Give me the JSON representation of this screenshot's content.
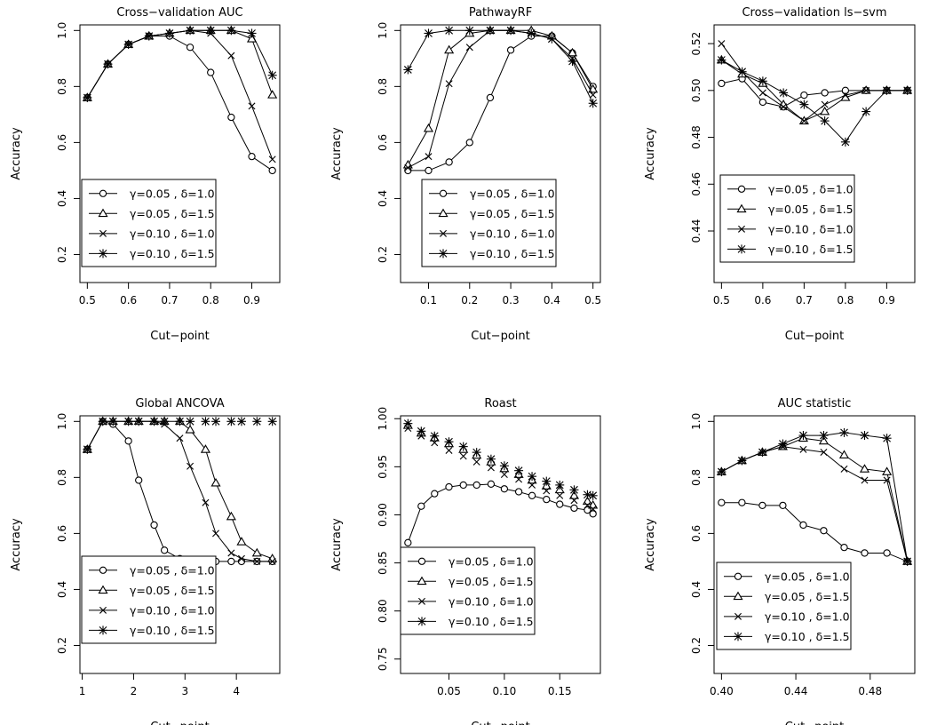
{
  "chart_data": [
    {
      "type": "line",
      "title": "Cross−validation AUC",
      "xlabel": "Cut−point",
      "ylabel": "Accuracy",
      "xlim": [
        0.5,
        0.95
      ],
      "ylim": [
        0.1,
        1.02
      ],
      "xticks": [
        0.5,
        0.6,
        0.7,
        0.8,
        0.9
      ],
      "xtick_labels": [
        "0.5",
        "0.6",
        "0.7",
        "0.8",
        "0.9"
      ],
      "yticks": [
        0.2,
        0.4,
        0.6,
        0.8,
        1.0
      ],
      "ytick_labels": [
        "0.2",
        "0.4",
        "0.6",
        "0.8",
        "1.0"
      ],
      "grid": false,
      "legend_position": "bottom-left",
      "x": [
        0.5,
        0.55,
        0.6,
        0.65,
        0.7,
        0.75,
        0.8,
        0.85,
        0.9,
        0.95
      ],
      "series": [
        {
          "name": "γ=0.05 , δ=1.0",
          "marker": "circle",
          "connected": true,
          "values": [
            0.76,
            0.88,
            0.95,
            0.98,
            0.98,
            0.94,
            0.85,
            0.69,
            0.55,
            0.5
          ]
        },
        {
          "name": "γ=0.05 , δ=1.5",
          "marker": "triangle",
          "connected": true,
          "values": [
            0.76,
            0.88,
            0.95,
            0.98,
            0.99,
            1.0,
            1.0,
            1.0,
            0.97,
            0.77
          ]
        },
        {
          "name": "γ=0.10 , δ=1.0",
          "marker": "x",
          "connected": true,
          "values": [
            0.76,
            0.88,
            0.95,
            0.98,
            0.99,
            1.0,
            0.99,
            0.91,
            0.73,
            0.54
          ]
        },
        {
          "name": "γ=0.10 , δ=1.5",
          "marker": "star",
          "connected": true,
          "values": [
            0.76,
            0.88,
            0.95,
            0.98,
            0.99,
            1.0,
            1.0,
            1.0,
            0.99,
            0.84
          ]
        }
      ]
    },
    {
      "type": "line",
      "title": "PathwayRF",
      "xlabel": "Cut−point",
      "ylabel": "Accuracy",
      "xlim": [
        0.05,
        0.5
      ],
      "ylim": [
        0.1,
        1.02
      ],
      "xticks": [
        0.1,
        0.2,
        0.3,
        0.4,
        0.5
      ],
      "xtick_labels": [
        "0.1",
        "0.2",
        "0.3",
        "0.4",
        "0.5"
      ],
      "yticks": [
        0.2,
        0.4,
        0.6,
        0.8,
        1.0
      ],
      "ytick_labels": [
        "0.2",
        "0.4",
        "0.6",
        "0.8",
        "1.0"
      ],
      "grid": false,
      "legend_position": "bottom-right",
      "x": [
        0.05,
        0.1,
        0.15,
        0.2,
        0.25,
        0.3,
        0.35,
        0.4,
        0.45,
        0.5
      ],
      "series": [
        {
          "name": "γ=0.05 , δ=1.0",
          "marker": "circle",
          "connected": true,
          "values": [
            0.5,
            0.5,
            0.53,
            0.6,
            0.76,
            0.93,
            0.98,
            0.98,
            0.92,
            0.8
          ]
        },
        {
          "name": "γ=0.05 , δ=1.5",
          "marker": "triangle",
          "connected": true,
          "values": [
            0.52,
            0.65,
            0.93,
            0.99,
            1.0,
            1.0,
            1.0,
            0.98,
            0.92,
            0.79
          ]
        },
        {
          "name": "γ=0.10 , δ=1.0",
          "marker": "x",
          "connected": true,
          "values": [
            0.51,
            0.55,
            0.81,
            0.94,
            1.0,
            1.0,
            0.99,
            0.97,
            0.9,
            0.77
          ]
        },
        {
          "name": "γ=0.10 , δ=1.5",
          "marker": "star",
          "connected": true,
          "values": [
            0.86,
            0.99,
            1.0,
            1.0,
            1.0,
            1.0,
            0.99,
            0.97,
            0.89,
            0.74
          ]
        }
      ]
    },
    {
      "type": "line",
      "title": "Cross−validation ls−svm",
      "xlabel": "Cut−point",
      "ylabel": "Accuracy",
      "xlim": [
        0.5,
        0.95
      ],
      "ylim": [
        0.418,
        0.528
      ],
      "xticks": [
        0.5,
        0.6,
        0.7,
        0.8,
        0.9
      ],
      "xtick_labels": [
        "0.5",
        "0.6",
        "0.7",
        "0.8",
        "0.9"
      ],
      "yticks": [
        0.44,
        0.46,
        0.48,
        0.5,
        0.52
      ],
      "ytick_labels": [
        "0.44",
        "0.46",
        "0.48",
        "0.50",
        "0.52"
      ],
      "grid": false,
      "legend_position": "bottom-left",
      "x": [
        0.5,
        0.55,
        0.6,
        0.65,
        0.7,
        0.75,
        0.8,
        0.85,
        0.9,
        0.95
      ],
      "series": [
        {
          "name": "γ=0.05 , δ=1.0",
          "marker": "circle",
          "connected": true,
          "values": [
            0.503,
            0.505,
            0.495,
            0.493,
            0.498,
            0.499,
            0.5,
            0.5,
            0.5,
            0.5
          ]
        },
        {
          "name": "γ=0.05 , δ=1.5",
          "marker": "triangle",
          "connected": true,
          "values": [
            0.513,
            0.507,
            0.503,
            0.494,
            0.487,
            0.491,
            0.497,
            0.5,
            0.5,
            0.5
          ]
        },
        {
          "name": "γ=0.10 , δ=1.0",
          "marker": "x",
          "connected": true,
          "values": [
            0.52,
            0.508,
            0.499,
            0.493,
            0.487,
            0.494,
            0.498,
            0.5,
            0.5,
            0.5
          ]
        },
        {
          "name": "γ=0.10 , δ=1.5",
          "marker": "star",
          "connected": true,
          "values": [
            0.513,
            0.508,
            0.504,
            0.499,
            0.494,
            0.487,
            0.478,
            0.491,
            0.5,
            0.5
          ]
        }
      ]
    },
    {
      "type": "line",
      "title": "Global ANCOVA",
      "xlabel": "Cut−point",
      "ylabel": "Accuracy",
      "xlim": [
        1.1,
        4.7
      ],
      "ylim": [
        0.1,
        1.02
      ],
      "xticks": [
        1,
        2,
        3,
        4
      ],
      "xtick_labels": [
        "1",
        "2",
        "3",
        "4"
      ],
      "yticks": [
        0.2,
        0.4,
        0.6,
        0.8,
        1.0
      ],
      "ytick_labels": [
        "0.2",
        "0.4",
        "0.6",
        "0.8",
        "1.0"
      ],
      "grid": false,
      "legend_position": "bottom-left",
      "x": [
        1.1,
        1.4,
        1.6,
        1.9,
        2.1,
        2.4,
        2.6,
        2.9,
        3.1,
        3.4,
        3.6,
        3.9,
        4.1,
        4.4,
        4.7
      ],
      "series": [
        {
          "name": "γ=0.05 , δ=1.0",
          "marker": "circle",
          "connected": true,
          "values": [
            0.9,
            1.0,
            0.99,
            0.93,
            0.79,
            0.63,
            0.54,
            0.51,
            0.5,
            0.5,
            0.5,
            0.5,
            0.5,
            0.5,
            0.5
          ]
        },
        {
          "name": "γ=0.05 , δ=1.5",
          "marker": "triangle",
          "connected": true,
          "values": [
            0.9,
            1.0,
            1.0,
            1.0,
            1.0,
            1.0,
            1.0,
            1.0,
            0.97,
            0.9,
            0.78,
            0.66,
            0.57,
            0.53,
            0.51
          ]
        },
        {
          "name": "γ=0.10 , δ=1.0",
          "marker": "x",
          "connected": true,
          "values": [
            0.9,
            1.0,
            1.0,
            1.0,
            1.0,
            1.0,
            0.99,
            0.94,
            0.84,
            0.71,
            0.6,
            0.53,
            0.51,
            0.5,
            0.5
          ]
        },
        {
          "name": "γ=0.10 , δ=1.5",
          "marker": "star",
          "connected": false,
          "values": [
            0.9,
            1.0,
            1.0,
            1.0,
            1.0,
            1.0,
            1.0,
            1.0,
            1.0,
            1.0,
            1.0,
            1.0,
            1.0,
            1.0,
            1.0
          ]
        }
      ]
    },
    {
      "type": "line",
      "title": "Roast",
      "xlabel": "Cut−point",
      "ylabel": "Accuracy",
      "xlim": [
        0.013,
        0.18
      ],
      "ylim": [
        0.735,
        1.003
      ],
      "xticks": [
        0.05,
        0.1,
        0.15
      ],
      "xtick_labels": [
        "0.05",
        "0.10",
        "0.15"
      ],
      "yticks": [
        0.75,
        0.8,
        0.85,
        0.9,
        0.95,
        1.0
      ],
      "ytick_labels": [
        "0.75",
        "0.80",
        "0.85",
        "0.90",
        "0.95",
        "1.00"
      ],
      "grid": false,
      "legend_position": "bottom-left",
      "x": [
        0.013,
        0.025,
        0.037,
        0.05,
        0.063,
        0.075,
        0.088,
        0.1,
        0.113,
        0.125,
        0.138,
        0.15,
        0.163,
        0.175,
        0.18
      ],
      "series": [
        {
          "name": "γ=0.05 , δ=1.0",
          "marker": "circle",
          "connected": true,
          "values": [
            0.871,
            0.909,
            0.922,
            0.929,
            0.931,
            0.931,
            0.932,
            0.927,
            0.924,
            0.92,
            0.916,
            0.911,
            0.907,
            0.905,
            0.901
          ]
        },
        {
          "name": "γ=0.05 , δ=1.5",
          "marker": "triangle",
          "connected": false,
          "values": [
            0.993,
            0.985,
            0.98,
            0.974,
            0.968,
            0.962,
            0.955,
            0.948,
            0.942,
            0.936,
            0.93,
            0.926,
            0.92,
            0.914,
            0.91
          ]
        },
        {
          "name": "γ=0.10 , δ=1.0",
          "marker": "x",
          "connected": false,
          "values": [
            0.99,
            0.982,
            0.975,
            0.967,
            0.961,
            0.955,
            0.949,
            0.942,
            0.937,
            0.931,
            0.925,
            0.92,
            0.915,
            0.91,
            0.906
          ]
        },
        {
          "name": "γ=0.10 , δ=1.5",
          "marker": "star",
          "connected": false,
          "values": [
            0.995,
            0.987,
            0.982,
            0.976,
            0.971,
            0.965,
            0.958,
            0.951,
            0.946,
            0.94,
            0.935,
            0.931,
            0.926,
            0.921,
            0.92
          ]
        }
      ]
    },
    {
      "type": "line",
      "title": "AUC statistic",
      "xlabel": "Cut−point",
      "ylabel": "Accuracy",
      "xlim": [
        0.4,
        0.5
      ],
      "ylim": [
        0.1,
        1.02
      ],
      "xticks": [
        0.4,
        0.44,
        0.48
      ],
      "xtick_labels": [
        "0.40",
        "0.44",
        "0.48"
      ],
      "yticks": [
        0.2,
        0.4,
        0.6,
        0.8,
        1.0
      ],
      "ytick_labels": [
        "0.2",
        "0.4",
        "0.6",
        "0.8",
        "1.0"
      ],
      "grid": false,
      "legend_position": "bottom-left",
      "x": [
        0.4,
        0.411,
        0.422,
        0.433,
        0.444,
        0.455,
        0.466,
        0.477,
        0.489,
        0.5
      ],
      "series": [
        {
          "name": "γ=0.05 , δ=1.0",
          "marker": "circle",
          "connected": true,
          "values": [
            0.71,
            0.71,
            0.7,
            0.7,
            0.63,
            0.61,
            0.55,
            0.53,
            0.53,
            0.5
          ]
        },
        {
          "name": "γ=0.05 , δ=1.5",
          "marker": "triangle",
          "connected": true,
          "values": [
            0.82,
            0.86,
            0.89,
            0.91,
            0.94,
            0.93,
            0.88,
            0.83,
            0.82,
            0.5
          ]
        },
        {
          "name": "γ=0.10 , δ=1.0",
          "marker": "x",
          "connected": true,
          "values": [
            0.82,
            0.86,
            0.89,
            0.91,
            0.9,
            0.89,
            0.83,
            0.79,
            0.79,
            0.5
          ]
        },
        {
          "name": "γ=0.10 , δ=1.5",
          "marker": "star",
          "connected": true,
          "values": [
            0.82,
            0.86,
            0.89,
            0.92,
            0.95,
            0.95,
            0.96,
            0.95,
            0.94,
            0.5
          ]
        }
      ]
    }
  ]
}
